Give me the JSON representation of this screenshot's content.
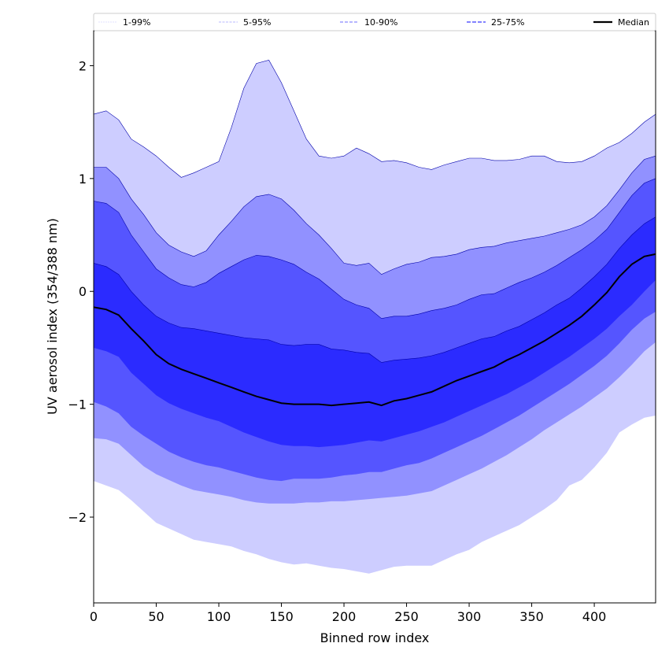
{
  "chart_data": {
    "type": "area",
    "title": "",
    "xlabel": "Binned row index",
    "ylabel": "UV aerosol index (354/388 nm)",
    "xlim": [
      0,
      449
    ],
    "ylim": [
      -2.76,
      2.31
    ],
    "xticks": [
      0,
      50,
      100,
      150,
      200,
      250,
      300,
      350,
      400
    ],
    "yticks": [
      -2,
      -1,
      0,
      1,
      2
    ],
    "ytick_labels": [
      "−2",
      "−1",
      "0",
      "1",
      "2"
    ],
    "grid": false,
    "legend": {
      "placement": "top",
      "entries": [
        "1-99%",
        "5-95%",
        "10-90%",
        "25-75%",
        "Median"
      ]
    },
    "colors": {
      "band_1_99": "#cdcdff",
      "band_5_95": "#9191ff",
      "band_10_90": "#5555ff",
      "band_25_75": "#2b2bff",
      "median": "#000000",
      "edge": "#0000aa"
    },
    "x": [
      0,
      10,
      20,
      30,
      40,
      50,
      60,
      70,
      80,
      90,
      100,
      110,
      120,
      130,
      140,
      150,
      160,
      170,
      180,
      190,
      200,
      210,
      220,
      230,
      240,
      250,
      260,
      270,
      280,
      290,
      300,
      310,
      320,
      330,
      340,
      350,
      360,
      370,
      380,
      390,
      400,
      410,
      420,
      430,
      440,
      449
    ],
    "series": [
      {
        "name": "p99",
        "values": [
          1.57,
          1.6,
          1.52,
          1.35,
          1.28,
          1.2,
          1.1,
          1.01,
          1.05,
          1.1,
          1.15,
          1.45,
          1.8,
          2.02,
          2.05,
          1.85,
          1.6,
          1.35,
          1.2,
          1.18,
          1.2,
          1.27,
          1.22,
          1.15,
          1.16,
          1.14,
          1.1,
          1.08,
          1.12,
          1.15,
          1.18,
          1.18,
          1.16,
          1.16,
          1.17,
          1.2,
          1.2,
          1.15,
          1.14,
          1.15,
          1.2,
          1.27,
          1.32,
          1.4,
          1.5,
          1.57
        ]
      },
      {
        "name": "p95",
        "values": [
          1.1,
          1.1,
          1.0,
          0.82,
          0.68,
          0.52,
          0.41,
          0.35,
          0.31,
          0.36,
          0.5,
          0.62,
          0.75,
          0.84,
          0.86,
          0.82,
          0.72,
          0.6,
          0.5,
          0.38,
          0.25,
          0.23,
          0.25,
          0.15,
          0.2,
          0.24,
          0.26,
          0.3,
          0.31,
          0.33,
          0.37,
          0.39,
          0.4,
          0.43,
          0.45,
          0.47,
          0.49,
          0.52,
          0.55,
          0.59,
          0.66,
          0.76,
          0.9,
          1.05,
          1.17,
          1.2
        ]
      },
      {
        "name": "p90",
        "values": [
          0.8,
          0.78,
          0.7,
          0.5,
          0.35,
          0.2,
          0.12,
          0.06,
          0.04,
          0.08,
          0.16,
          0.22,
          0.28,
          0.32,
          0.31,
          0.28,
          0.24,
          0.17,
          0.11,
          0.02,
          -0.07,
          -0.12,
          -0.15,
          -0.24,
          -0.22,
          -0.22,
          -0.2,
          -0.17,
          -0.15,
          -0.12,
          -0.07,
          -0.03,
          -0.02,
          0.03,
          0.08,
          0.12,
          0.17,
          0.23,
          0.3,
          0.37,
          0.45,
          0.55,
          0.7,
          0.85,
          0.96,
          1.0
        ]
      },
      {
        "name": "p75",
        "values": [
          0.25,
          0.22,
          0.15,
          0.0,
          -0.12,
          -0.22,
          -0.28,
          -0.32,
          -0.33,
          -0.35,
          -0.37,
          -0.39,
          -0.41,
          -0.42,
          -0.43,
          -0.47,
          -0.48,
          -0.47,
          -0.47,
          -0.51,
          -0.52,
          -0.54,
          -0.55,
          -0.63,
          -0.61,
          -0.6,
          -0.59,
          -0.57,
          -0.54,
          -0.5,
          -0.46,
          -0.42,
          -0.4,
          -0.35,
          -0.31,
          -0.25,
          -0.19,
          -0.12,
          -0.06,
          0.03,
          0.13,
          0.24,
          0.38,
          0.5,
          0.6,
          0.66
        ]
      },
      {
        "name": "Median",
        "values": [
          -0.14,
          -0.16,
          -0.21,
          -0.33,
          -0.44,
          -0.56,
          -0.64,
          -0.69,
          -0.73,
          -0.77,
          -0.81,
          -0.85,
          -0.89,
          -0.93,
          -0.96,
          -0.99,
          -1.0,
          -1.0,
          -1.0,
          -1.01,
          -1.0,
          -0.99,
          -0.98,
          -1.01,
          -0.97,
          -0.95,
          -0.92,
          -0.89,
          -0.84,
          -0.79,
          -0.75,
          -0.71,
          -0.67,
          -0.61,
          -0.56,
          -0.5,
          -0.44,
          -0.37,
          -0.3,
          -0.22,
          -0.12,
          -0.01,
          0.13,
          0.24,
          0.31,
          0.33
        ]
      },
      {
        "name": "p25",
        "values": [
          -0.5,
          -0.53,
          -0.58,
          -0.72,
          -0.82,
          -0.92,
          -0.99,
          -1.04,
          -1.08,
          -1.12,
          -1.15,
          -1.2,
          -1.25,
          -1.29,
          -1.33,
          -1.36,
          -1.37,
          -1.37,
          -1.38,
          -1.37,
          -1.36,
          -1.34,
          -1.32,
          -1.33,
          -1.3,
          -1.27,
          -1.24,
          -1.2,
          -1.16,
          -1.11,
          -1.06,
          -1.01,
          -0.96,
          -0.91,
          -0.85,
          -0.79,
          -0.72,
          -0.65,
          -0.58,
          -0.5,
          -0.42,
          -0.33,
          -0.22,
          -0.12,
          0.0,
          0.1
        ]
      },
      {
        "name": "p10",
        "values": [
          -0.98,
          -1.02,
          -1.08,
          -1.2,
          -1.28,
          -1.35,
          -1.42,
          -1.47,
          -1.51,
          -1.54,
          -1.56,
          -1.59,
          -1.62,
          -1.65,
          -1.67,
          -1.68,
          -1.66,
          -1.66,
          -1.66,
          -1.65,
          -1.63,
          -1.62,
          -1.6,
          -1.6,
          -1.57,
          -1.54,
          -1.52,
          -1.48,
          -1.43,
          -1.38,
          -1.33,
          -1.28,
          -1.22,
          -1.16,
          -1.1,
          -1.03,
          -0.96,
          -0.89,
          -0.82,
          -0.74,
          -0.66,
          -0.57,
          -0.46,
          -0.34,
          -0.24,
          -0.18
        ]
      },
      {
        "name": "p5",
        "values": [
          -1.3,
          -1.31,
          -1.35,
          -1.45,
          -1.55,
          -1.62,
          -1.67,
          -1.72,
          -1.76,
          -1.78,
          -1.8,
          -1.82,
          -1.85,
          -1.87,
          -1.88,
          -1.88,
          -1.88,
          -1.87,
          -1.87,
          -1.86,
          -1.86,
          -1.85,
          -1.84,
          -1.83,
          -1.82,
          -1.81,
          -1.79,
          -1.77,
          -1.72,
          -1.67,
          -1.62,
          -1.57,
          -1.51,
          -1.45,
          -1.38,
          -1.31,
          -1.23,
          -1.16,
          -1.09,
          -1.02,
          -0.94,
          -0.86,
          -0.76,
          -0.65,
          -0.53,
          -0.45
        ]
      },
      {
        "name": "p1",
        "values": [
          -1.68,
          -1.72,
          -1.76,
          -1.85,
          -1.95,
          -2.05,
          -2.1,
          -2.15,
          -2.2,
          -2.22,
          -2.24,
          -2.26,
          -2.3,
          -2.33,
          -2.37,
          -2.4,
          -2.42,
          -2.41,
          -2.43,
          -2.45,
          -2.46,
          -2.48,
          -2.5,
          -2.47,
          -2.44,
          -2.43,
          -2.43,
          -2.43,
          -2.38,
          -2.33,
          -2.29,
          -2.22,
          -2.17,
          -2.12,
          -2.07,
          -2.0,
          -1.93,
          -1.85,
          -1.72,
          -1.67,
          -1.56,
          -1.43,
          -1.25,
          -1.18,
          -1.12,
          -1.1
        ]
      }
    ]
  }
}
